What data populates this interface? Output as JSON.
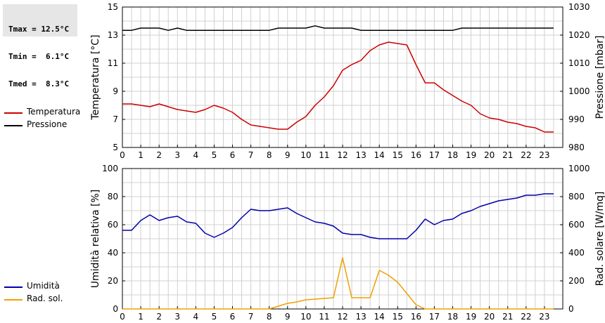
{
  "stats": {
    "tmax": "Tmax = 12.5°C",
    "tmin": "Tmin =  6.1°C",
    "tmed": "Tmed =  8.3°C"
  },
  "legend_top": [
    {
      "label": "Temperatura",
      "color": "#cc0000"
    },
    {
      "label": "Pressione",
      "color": "#000000"
    }
  ],
  "legend_bottom": [
    {
      "label": "Umidità",
      "color": "#0000aa"
    },
    {
      "label": "Rad. sol.",
      "color": "#f0a000"
    }
  ],
  "chart_data": [
    {
      "type": "line",
      "ylabel": "Temperatura [°C]",
      "y2label": "Pressione [mbar]",
      "xlim": [
        0,
        24
      ],
      "xticks": [
        "0",
        "1",
        "2",
        "3",
        "4",
        "5",
        "6",
        "7",
        "8",
        "9",
        "10",
        "11",
        "12",
        "13",
        "14",
        "15",
        "16",
        "17",
        "18",
        "19",
        "20",
        "21",
        "22",
        "23"
      ],
      "ylim": [
        5,
        15
      ],
      "yticks": [
        "5",
        "7",
        "9",
        "11",
        "13",
        "15"
      ],
      "y2lim": [
        980,
        1030
      ],
      "y2ticks": [
        "980",
        "990",
        "1000",
        "1010",
        "1020",
        "1030"
      ],
      "grid": true,
      "series": [
        {
          "name": "Temperatura",
          "axis": "left",
          "color": "#cc0000",
          "x": [
            0,
            0.5,
            1,
            1.5,
            2,
            2.5,
            3,
            3.5,
            4,
            4.5,
            5,
            5.5,
            6,
            6.5,
            7,
            7.5,
            8,
            8.5,
            9,
            9.5,
            10,
            10.5,
            11,
            11.5,
            12,
            12.5,
            13,
            13.5,
            14,
            14.5,
            15,
            15.5,
            16,
            16.5,
            17,
            17.5,
            18,
            18.5,
            19,
            19.5,
            20,
            20.5,
            21,
            21.5,
            22,
            22.5,
            23,
            23.5
          ],
          "y": [
            8.1,
            8.1,
            8.0,
            7.9,
            8.1,
            7.9,
            7.7,
            7.6,
            7.5,
            7.7,
            8.0,
            7.8,
            7.5,
            7.0,
            6.6,
            6.5,
            6.4,
            6.3,
            6.3,
            6.8,
            7.2,
            8.0,
            8.6,
            9.4,
            10.5,
            10.9,
            11.2,
            11.9,
            12.3,
            12.5,
            12.4,
            12.3,
            10.9,
            9.6,
            9.6,
            9.1,
            8.7,
            8.3,
            8.0,
            7.4,
            7.1,
            7.0,
            6.8,
            6.7,
            6.5,
            6.4,
            6.1,
            6.1
          ]
        },
        {
          "name": "Pressione",
          "axis": "right",
          "color": "#000000",
          "x": [
            0,
            0.5,
            1,
            1.5,
            2,
            2.5,
            3,
            3.5,
            4,
            4.5,
            5,
            5.5,
            6,
            6.5,
            7,
            7.5,
            8,
            8.5,
            9,
            9.5,
            10,
            10.5,
            11,
            11.5,
            12,
            12.5,
            13,
            13.5,
            14,
            14.5,
            15,
            15.5,
            16,
            16.5,
            17,
            17.5,
            18,
            18.5,
            19,
            19.5,
            20,
            20.5,
            21,
            21.5,
            22,
            22.5,
            23,
            23.5
          ],
          "y": [
            1021.7,
            1021.7,
            1022.5,
            1022.5,
            1022.5,
            1021.7,
            1022.5,
            1021.7,
            1021.7,
            1021.7,
            1021.7,
            1021.7,
            1021.7,
            1021.7,
            1021.7,
            1021.7,
            1021.7,
            1022.5,
            1022.5,
            1022.5,
            1022.5,
            1023.3,
            1022.5,
            1022.5,
            1022.5,
            1022.5,
            1021.7,
            1021.7,
            1021.7,
            1021.7,
            1021.7,
            1021.7,
            1021.7,
            1021.7,
            1021.7,
            1021.7,
            1021.7,
            1022.5,
            1022.5,
            1022.5,
            1022.5,
            1022.5,
            1022.5,
            1022.5,
            1022.5,
            1022.5,
            1022.5,
            1022.5
          ]
        }
      ]
    },
    {
      "type": "line",
      "ylabel": "Umidità relativa [%]",
      "y2label": "Rad. solare [W/mq]",
      "xlim": [
        0,
        24
      ],
      "xticks": [
        "0",
        "1",
        "2",
        "3",
        "4",
        "5",
        "6",
        "7",
        "8",
        "9",
        "10",
        "11",
        "12",
        "13",
        "14",
        "15",
        "16",
        "17",
        "18",
        "19",
        "20",
        "21",
        "22",
        "23"
      ],
      "ylim": [
        0,
        100
      ],
      "yticks": [
        "0",
        "20",
        "40",
        "60",
        "80",
        "100"
      ],
      "y2lim": [
        0,
        1000
      ],
      "y2ticks": [
        "0",
        "200",
        "400",
        "600",
        "800",
        "1000"
      ],
      "grid": true,
      "series": [
        {
          "name": "Umidità",
          "axis": "left",
          "color": "#0000aa",
          "x": [
            0,
            0.5,
            1,
            1.5,
            2,
            2.5,
            3,
            3.5,
            4,
            4.5,
            5,
            5.5,
            6,
            6.5,
            7,
            7.5,
            8,
            8.5,
            9,
            9.5,
            10,
            10.5,
            11,
            11.5,
            12,
            12.5,
            13,
            13.5,
            14,
            14.5,
            15,
            15.5,
            16,
            16.5,
            17,
            17.5,
            18,
            18.5,
            19,
            19.5,
            20,
            20.5,
            21,
            21.5,
            22,
            22.5,
            23,
            23.5
          ],
          "y": [
            56,
            56,
            63,
            67,
            63,
            65,
            66,
            62,
            61,
            54,
            51,
            54,
            58,
            65,
            71,
            70,
            70,
            71,
            72,
            68,
            65,
            62,
            61,
            59,
            54,
            53,
            53,
            51,
            50,
            50,
            50,
            50,
            56,
            64,
            60,
            63,
            64,
            68,
            70,
            73,
            75,
            77,
            78,
            79,
            81,
            81,
            82,
            82
          ]
        },
        {
          "name": "Rad. sol.",
          "axis": "right",
          "color": "#f0a000",
          "x": [
            0,
            1,
            2,
            3,
            4,
            5,
            6,
            7,
            8,
            8.5,
            9,
            9.5,
            10,
            10.5,
            11,
            11.5,
            12,
            12.5,
            13,
            13.5,
            14,
            14.5,
            15,
            15.5,
            16,
            16.5,
            17,
            18,
            19,
            20,
            21,
            22,
            23,
            23.5
          ],
          "y": [
            0,
            0,
            0,
            0,
            0,
            0,
            0,
            0,
            0,
            20,
            40,
            50,
            65,
            70,
            75,
            80,
            365,
            80,
            80,
            80,
            275,
            240,
            190,
            110,
            30,
            0,
            0,
            0,
            0,
            0,
            0,
            0,
            0,
            0
          ]
        }
      ]
    }
  ]
}
